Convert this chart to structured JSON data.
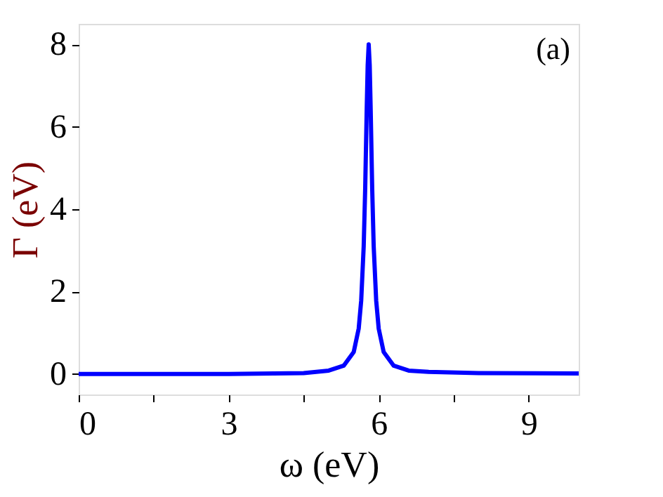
{
  "chart_data": {
    "type": "line",
    "xlabel": "ω (eV)",
    "ylabel": "Γ (eV)",
    "annotations": [
      "(a)"
    ],
    "x": [
      0,
      3,
      4.5,
      5.0,
      5.3,
      5.5,
      5.6,
      5.65,
      5.7,
      5.73,
      5.76,
      5.78,
      5.8,
      5.82,
      5.84,
      5.87,
      5.9,
      5.95,
      6.0,
      6.1,
      6.3,
      6.6,
      7,
      8,
      10
    ],
    "series": [
      {
        "color": "#0000ff",
        "values": [
          0,
          0,
          0.02,
          0.08,
          0.2,
          0.53,
          1.1,
          1.78,
          3.1,
          4.5,
          6.4,
          7.5,
          8,
          7.5,
          6.4,
          4.5,
          3.1,
          1.78,
          1.1,
          0.53,
          0.2,
          0.08,
          0.05,
          0.02,
          0.01
        ]
      }
    ],
    "xlim": [
      0,
      10
    ],
    "ylim": [
      -0.5,
      8.5
    ],
    "xticks": [
      0,
      {
        "value": 1.5,
        "label": null
      },
      3,
      {
        "value": 4.5,
        "label": null
      },
      6,
      {
        "value": 7.5,
        "label": null
      },
      9
    ],
    "yticks": [
      0,
      2,
      4,
      6,
      8
    ],
    "grid": false,
    "line_style": "solid",
    "marker": "none"
  }
}
